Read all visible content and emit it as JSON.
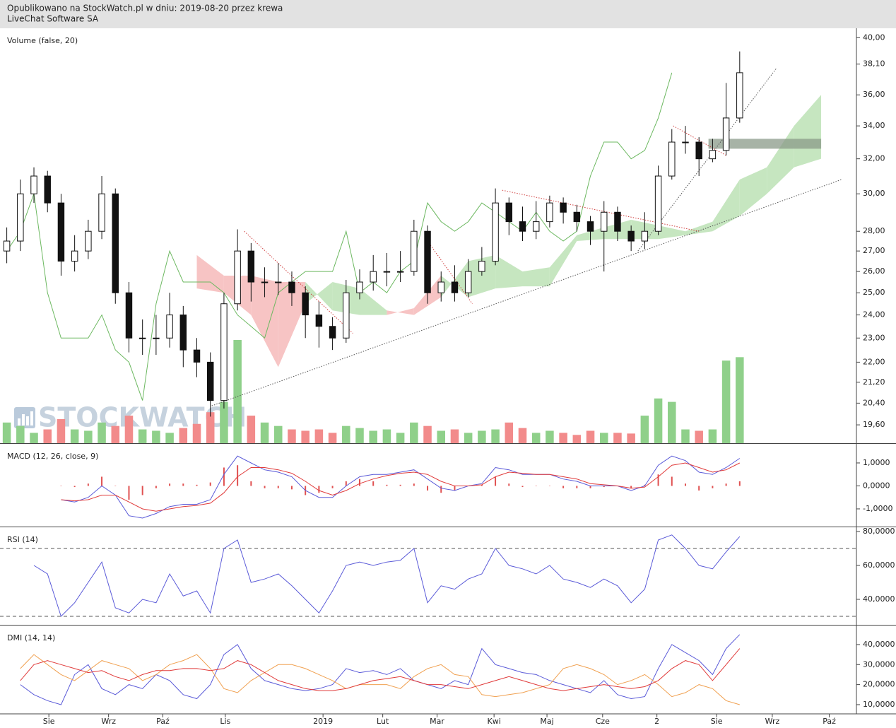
{
  "header": {
    "line1": "Opublikowano na StockWatch.pl w dniu: 2019-08-20 przez krewa",
    "line2": "LiveChat Software SA"
  },
  "watermark": "STOCKWATCH",
  "chart_data": [
    {
      "type": "candlestick",
      "title": "Volume (false, 20)",
      "x": [
        0.5,
        1.5,
        2.5,
        3.5,
        4.5,
        5.5,
        6.5,
        7.5,
        8.5,
        9.5,
        10.5,
        11.5,
        12.5,
        13.5,
        14.5,
        15.5,
        16.5,
        17.5,
        18.5,
        19.5,
        20.5,
        21.5,
        22.5,
        23.5,
        24.5,
        25.5,
        26.5,
        27.5,
        28.5,
        29.5,
        30.5,
        31.5,
        32.5,
        33.5,
        34.5,
        35.5,
        36.5,
        37.5,
        38.5,
        39.5,
        40.5,
        41.5,
        42.5,
        43.5,
        44.5,
        45.5,
        46.5,
        47.5,
        48.5,
        49.5,
        50.5,
        51.5,
        52.5,
        53.5,
        54.5
      ],
      "open": [
        27,
        27.5,
        30,
        31,
        29.5,
        26.5,
        27,
        28,
        30,
        25,
        23,
        23,
        23,
        24,
        22.5,
        22,
        20.5,
        24.5,
        27,
        25.5,
        25.5,
        25.5,
        25,
        24,
        23.5,
        23,
        25,
        25.5,
        26,
        26,
        26,
        28,
        25,
        25.5,
        25,
        26,
        26.5,
        29.5,
        28.5,
        28,
        28.5,
        29.5,
        29,
        28.5,
        28,
        29,
        28,
        27.5,
        28,
        31,
        33,
        33,
        32,
        32.5,
        34.5
      ],
      "high": [
        28.2,
        30.8,
        31.5,
        31.3,
        30.0,
        27.8,
        28.6,
        31.0,
        30.3,
        25.5,
        23.8,
        24.0,
        25.0,
        24.4,
        23.0,
        22.4,
        25.0,
        28.1,
        27.4,
        26.2,
        26.4,
        26.0,
        25.3,
        24.6,
        23.9,
        25.6,
        26.1,
        26.8,
        26.9,
        27.0,
        28.6,
        28.3,
        26.0,
        26.3,
        26.6,
        27.2,
        30.3,
        29.8,
        29.3,
        29.6,
        29.9,
        29.8,
        29.4,
        28.8,
        29.6,
        29.3,
        28.3,
        29.0,
        31.6,
        33.8,
        34.0,
        33.3,
        33.2,
        36.8,
        39.0
      ],
      "low": [
        26.4,
        27.0,
        29.5,
        29.0,
        25.8,
        26.0,
        26.6,
        27.6,
        24.5,
        22.4,
        22.3,
        22.3,
        22.6,
        21.8,
        21.4,
        19.9,
        20.2,
        24.2,
        24.6,
        24.8,
        24.9,
        24.4,
        23.0,
        22.6,
        22.5,
        22.8,
        24.7,
        25.1,
        25.3,
        25.5,
        25.8,
        24.5,
        24.6,
        24.6,
        24.8,
        25.8,
        26.3,
        27.8,
        27.5,
        27.6,
        28.2,
        28.4,
        28.0,
        27.3,
        26.0,
        27.5,
        27.0,
        27.1,
        27.8,
        30.8,
        32.3,
        31.0,
        31.8,
        32.2,
        34.2
      ],
      "close": [
        27.5,
        30,
        31,
        29.5,
        26.5,
        27,
        28,
        30,
        25,
        23,
        23,
        23,
        24,
        22.5,
        22,
        20.5,
        24.5,
        27,
        25.5,
        25.5,
        25.5,
        25,
        24,
        23.5,
        23,
        25,
        25.5,
        26,
        26,
        26,
        28,
        25,
        25.5,
        25,
        26,
        26.5,
        29.5,
        28.5,
        28,
        28.5,
        29.5,
        29,
        28.5,
        28,
        29,
        28,
        27.5,
        28,
        31,
        33,
        33,
        32,
        32.5,
        34.5,
        37.5
      ],
      "volume": [
        30,
        25,
        15,
        20,
        35,
        20,
        18,
        30,
        25,
        40,
        20,
        18,
        15,
        22,
        28,
        45,
        60,
        150,
        40,
        30,
        25,
        20,
        18,
        20,
        15,
        25,
        22,
        18,
        20,
        15,
        30,
        25,
        18,
        20,
        15,
        18,
        20,
        30,
        22,
        15,
        18,
        15,
        12,
        18,
        15,
        15,
        14,
        40,
        65,
        60,
        20,
        18,
        20,
        120,
        125
      ],
      "up_color": "#ffffff",
      "down_color": "#111111",
      "volume_up_color": "#8fd08a",
      "volume_down_color": "#f28b8b",
      "log_scale": true,
      "ylim": [
        18.95,
        40.7
      ],
      "yticks": [
        {
          "value": 40,
          "label": "40,00"
        },
        {
          "value": 38.1,
          "label": "38,10"
        },
        {
          "value": 36,
          "label": "36,00"
        },
        {
          "value": 34,
          "label": "34,00"
        },
        {
          "value": 32,
          "label": "32,00"
        },
        {
          "value": 30,
          "label": "30,00"
        },
        {
          "value": 28,
          "label": "28,00"
        },
        {
          "value": 27,
          "label": "27,00"
        },
        {
          "value": 26,
          "label": "26,00"
        },
        {
          "value": 25,
          "label": "25,00"
        },
        {
          "value": 24,
          "label": "24,00"
        },
        {
          "value": 23,
          "label": "23,00"
        },
        {
          "value": 22,
          "label": "22,00"
        },
        {
          "value": 21.2,
          "label": "21,20"
        },
        {
          "value": 20.4,
          "label": "20,40"
        },
        {
          "value": 19.6,
          "label": "19,60"
        }
      ],
      "xlim": [
        0,
        63.1
      ],
      "xticks": [
        {
          "value": 3.6,
          "label": "Sie"
        },
        {
          "value": 8.0,
          "label": "Wrz"
        },
        {
          "value": 12.0,
          "label": "Paź"
        },
        {
          "value": 16.6,
          "label": "Lis"
        },
        {
          "value": 23.8,
          "label": "2019"
        },
        {
          "value": 28.2,
          "label": "Lut"
        },
        {
          "value": 32.2,
          "label": "Mar"
        },
        {
          "value": 36.4,
          "label": "Kwi"
        },
        {
          "value": 40.3,
          "label": "Maj"
        },
        {
          "value": 44.4,
          "label": "Cze"
        },
        {
          "value": 48.4,
          "label": "2"
        },
        {
          "value": 52.8,
          "label": "Sie"
        },
        {
          "value": 56.9,
          "label": "Wrz"
        },
        {
          "value": 61.1,
          "label": "Paź"
        }
      ],
      "cloud": {
        "x": [
          14.5,
          16.5,
          18.5,
          20.5,
          22.5,
          24.5,
          26.5,
          28.5,
          30.5,
          32.5,
          34.5,
          36.5,
          38.5,
          40.5,
          42.5,
          44.5,
          46.5,
          48.5,
          50.5,
          52.5,
          54.5,
          56.5,
          58.5,
          60.5
        ],
        "span_a": [
          25.2,
          25.0,
          24.0,
          21.8,
          24.5,
          25.5,
          25.2,
          24.2,
          24.0,
          24.8,
          26.5,
          26.8,
          26.0,
          26.2,
          27.8,
          28.2,
          28.6,
          28.3,
          28.0,
          28.5,
          30.8,
          31.5,
          34.0,
          36.0
        ],
        "span_b": [
          26.8,
          25.8,
          25.8,
          25.5,
          25.5,
          24.2,
          24.0,
          24.0,
          24.3,
          25.8,
          24.8,
          25.2,
          25.3,
          25.3,
          27.5,
          27.6,
          27.6,
          27.6,
          27.8,
          28.0,
          28.8,
          30.0,
          31.5,
          32.0
        ],
        "up_color": "#c6e6c0",
        "down_color": "#f7c4c4"
      },
      "lagging_span": {
        "color": "#6cb860",
        "x": [
          0.5,
          1.5,
          2.5,
          3.5,
          4.5,
          5.5,
          6.5,
          7.5,
          8.5,
          9.5,
          10.5,
          11.5,
          12.5,
          13.5,
          14.5,
          15.5,
          16.5,
          17.5,
          18.5,
          19.5,
          20.5,
          21.5,
          22.5,
          23.5,
          24.5,
          25.5,
          26.5,
          27.5,
          28.5,
          29.5,
          30.5,
          31.5,
          32.5,
          33.5,
          34.5,
          35.5,
          36.5,
          37.5,
          38.5,
          39.5,
          40.5,
          41.5,
          42.5,
          43.5,
          44.5,
          45.5,
          46.5,
          47.5,
          48.5,
          49.5
        ],
        "values": [
          27,
          28,
          30,
          25,
          23,
          23,
          23,
          24,
          22.5,
          22,
          20.5,
          24.5,
          27,
          25.5,
          25.5,
          25.5,
          25,
          24,
          23.5,
          23,
          25,
          25.5,
          26,
          26,
          26,
          28,
          25,
          25.5,
          25,
          26,
          26.5,
          29.5,
          28.5,
          28,
          28.5,
          29.5,
          29,
          28.5,
          28,
          29,
          28,
          27.5,
          28,
          31,
          33,
          33,
          32,
          32.5,
          34.5,
          37.5
        ]
      },
      "trendlines": [
        {
          "x": [
            15.6,
            62.0
          ],
          "y": [
            20.3,
            30.8
          ],
          "color": "#555555"
        },
        {
          "x": [
            47.0,
            57.2
          ],
          "y": [
            27.0,
            37.8
          ],
          "color": "#555555"
        },
        {
          "x": [
            18.0,
            26.0
          ],
          "y": [
            28.0,
            23.2
          ],
          "color": "#d04040"
        },
        {
          "x": [
            31.5,
            34.8
          ],
          "y": [
            27.5,
            24.5
          ],
          "color": "#d04040"
        },
        {
          "x": [
            37.0,
            51.5
          ],
          "y": [
            30.2,
            28.0
          ],
          "color": "#d04040"
        },
        {
          "x": [
            49.6,
            53.5
          ],
          "y": [
            34.0,
            32.2
          ],
          "color": "#d04040"
        }
      ],
      "zone": {
        "x": [
          52.2,
          60.5
        ],
        "y": [
          32.6,
          33.2
        ],
        "color": "#8a9a88"
      }
    },
    {
      "type": "line",
      "title": "MACD (12, 26, close, 9)",
      "ylim": [
        -1.77,
        1.83
      ],
      "yticks": [
        {
          "value": 1,
          "label": "1,0000"
        },
        {
          "value": 0,
          "label": "0,0000"
        },
        {
          "value": -1,
          "label": "-1,0000"
        }
      ],
      "series": [
        {
          "color": "#5a5ad8",
          "values": [
            null,
            null,
            null,
            null,
            -0.6,
            -0.7,
            -0.5,
            0,
            -0.4,
            -1.3,
            -1.4,
            -1.2,
            -0.9,
            -0.8,
            -0.8,
            -0.6,
            0.5,
            1.3,
            1.0,
            0.7,
            0.6,
            0.4,
            -0.2,
            -0.5,
            -0.5,
            0.0,
            0.4,
            0.5,
            0.5,
            0.6,
            0.7,
            0.3,
            -0.1,
            -0.2,
            0.0,
            0.1,
            0.8,
            0.7,
            0.5,
            0.5,
            0.5,
            0.3,
            0.2,
            0.0,
            0.0,
            0.0,
            -0.2,
            0.0,
            0.9,
            1.3,
            1.1,
            0.6,
            0.5,
            0.8,
            1.2
          ]
        },
        {
          "color": "#e03a3a",
          "values": [
            null,
            null,
            null,
            null,
            -0.6,
            -0.65,
            -0.6,
            -0.4,
            -0.4,
            -0.7,
            -1.0,
            -1.1,
            -1.0,
            -0.9,
            -0.85,
            -0.75,
            -0.3,
            0.4,
            0.8,
            0.8,
            0.7,
            0.55,
            0.2,
            -0.2,
            -0.4,
            -0.2,
            0.1,
            0.3,
            0.45,
            0.55,
            0.6,
            0.5,
            0.2,
            0.0,
            0.0,
            0.05,
            0.4,
            0.6,
            0.55,
            0.5,
            0.5,
            0.4,
            0.3,
            0.1,
            0.05,
            0.0,
            -0.1,
            -0.05,
            0.4,
            0.9,
            1.0,
            0.8,
            0.6,
            0.7,
            1.0
          ]
        }
      ],
      "histogram": {
        "color": "#e05050",
        "values": [
          null,
          null,
          null,
          null,
          0,
          -0.05,
          0.1,
          0.4,
          0,
          -0.6,
          -0.4,
          -0.1,
          0.1,
          0.1,
          0.05,
          0.15,
          0.8,
          0.9,
          0.2,
          -0.1,
          -0.1,
          -0.15,
          -0.4,
          -0.3,
          -0.1,
          0.2,
          0.3,
          0.2,
          0.05,
          0.05,
          0.1,
          -0.2,
          -0.3,
          -0.2,
          0,
          0.05,
          0.4,
          0.1,
          -0.05,
          0,
          0,
          -0.1,
          -0.1,
          -0.1,
          -0.05,
          0,
          -0.1,
          0.05,
          0.5,
          0.4,
          0.1,
          -0.2,
          -0.1,
          0.1,
          0.2
        ]
      }
    },
    {
      "type": "line",
      "title": "RSI (14)",
      "ylim": [
        25.4,
        82.5
      ],
      "yticks": [
        {
          "value": 80,
          "label": "80,0000"
        },
        {
          "value": 60,
          "label": "60,0000"
        },
        {
          "value": 40,
          "label": "40,0000"
        }
      ],
      "levels": [
        70,
        30
      ],
      "series": [
        {
          "color": "#5a5ad8",
          "values": [
            null,
            null,
            60,
            55,
            30,
            38,
            50,
            62,
            35,
            32,
            40,
            38,
            55,
            42,
            45,
            32,
            70,
            75,
            50,
            52,
            55,
            48,
            40,
            32,
            45,
            60,
            62,
            60,
            62,
            63,
            70,
            38,
            48,
            46,
            52,
            55,
            70,
            60,
            58,
            55,
            60,
            52,
            50,
            47,
            52,
            48,
            38,
            46,
            75,
            78,
            70,
            60,
            58,
            68,
            77
          ]
        }
      ]
    },
    {
      "type": "line",
      "title": "DMI (14, 14)",
      "ylim": [
        5.4,
        49.5
      ],
      "yticks": [
        {
          "value": 40,
          "label": "40,0000"
        },
        {
          "value": 30,
          "label": "30,0000"
        },
        {
          "value": 20,
          "label": "20,0000"
        },
        {
          "value": 10,
          "label": "10,0000"
        }
      ],
      "series": [
        {
          "color": "#5a5ad8",
          "values": [
            null,
            20,
            15,
            12,
            10,
            25,
            30,
            18,
            15,
            20,
            18,
            25,
            22,
            15,
            13,
            20,
            35,
            40,
            28,
            22,
            20,
            18,
            17,
            18,
            20,
            28,
            26,
            27,
            25,
            28,
            22,
            20,
            18,
            22,
            20,
            38,
            30,
            28,
            26,
            25,
            22,
            20,
            18,
            16,
            22,
            15,
            13,
            14,
            28,
            40,
            36,
            32,
            25,
            38,
            45
          ]
        },
        {
          "color": "#f0a050",
          "values": [
            null,
            28,
            35,
            30,
            25,
            22,
            27,
            32,
            30,
            28,
            22,
            25,
            30,
            32,
            35,
            28,
            18,
            16,
            22,
            26,
            30,
            30,
            28,
            25,
            22,
            18,
            20,
            20,
            20,
            18,
            24,
            28,
            30,
            25,
            24,
            15,
            14,
            15,
            16,
            18,
            20,
            28,
            30,
            28,
            25,
            20,
            22,
            25,
            20,
            14,
            16,
            20,
            18,
            12,
            10
          ]
        },
        {
          "color": "#e03a3a",
          "values": [
            null,
            22,
            30,
            32,
            30,
            28,
            26,
            27,
            24,
            22,
            25,
            27,
            27,
            28,
            28,
            27,
            28,
            32,
            30,
            26,
            22,
            20,
            18,
            17,
            17,
            18,
            20,
            22,
            23,
            24,
            22,
            20,
            20,
            19,
            18,
            20,
            22,
            24,
            22,
            20,
            18,
            17,
            18,
            19,
            20,
            19,
            18,
            19,
            22,
            28,
            32,
            30,
            22,
            30,
            38
          ]
        }
      ]
    }
  ]
}
